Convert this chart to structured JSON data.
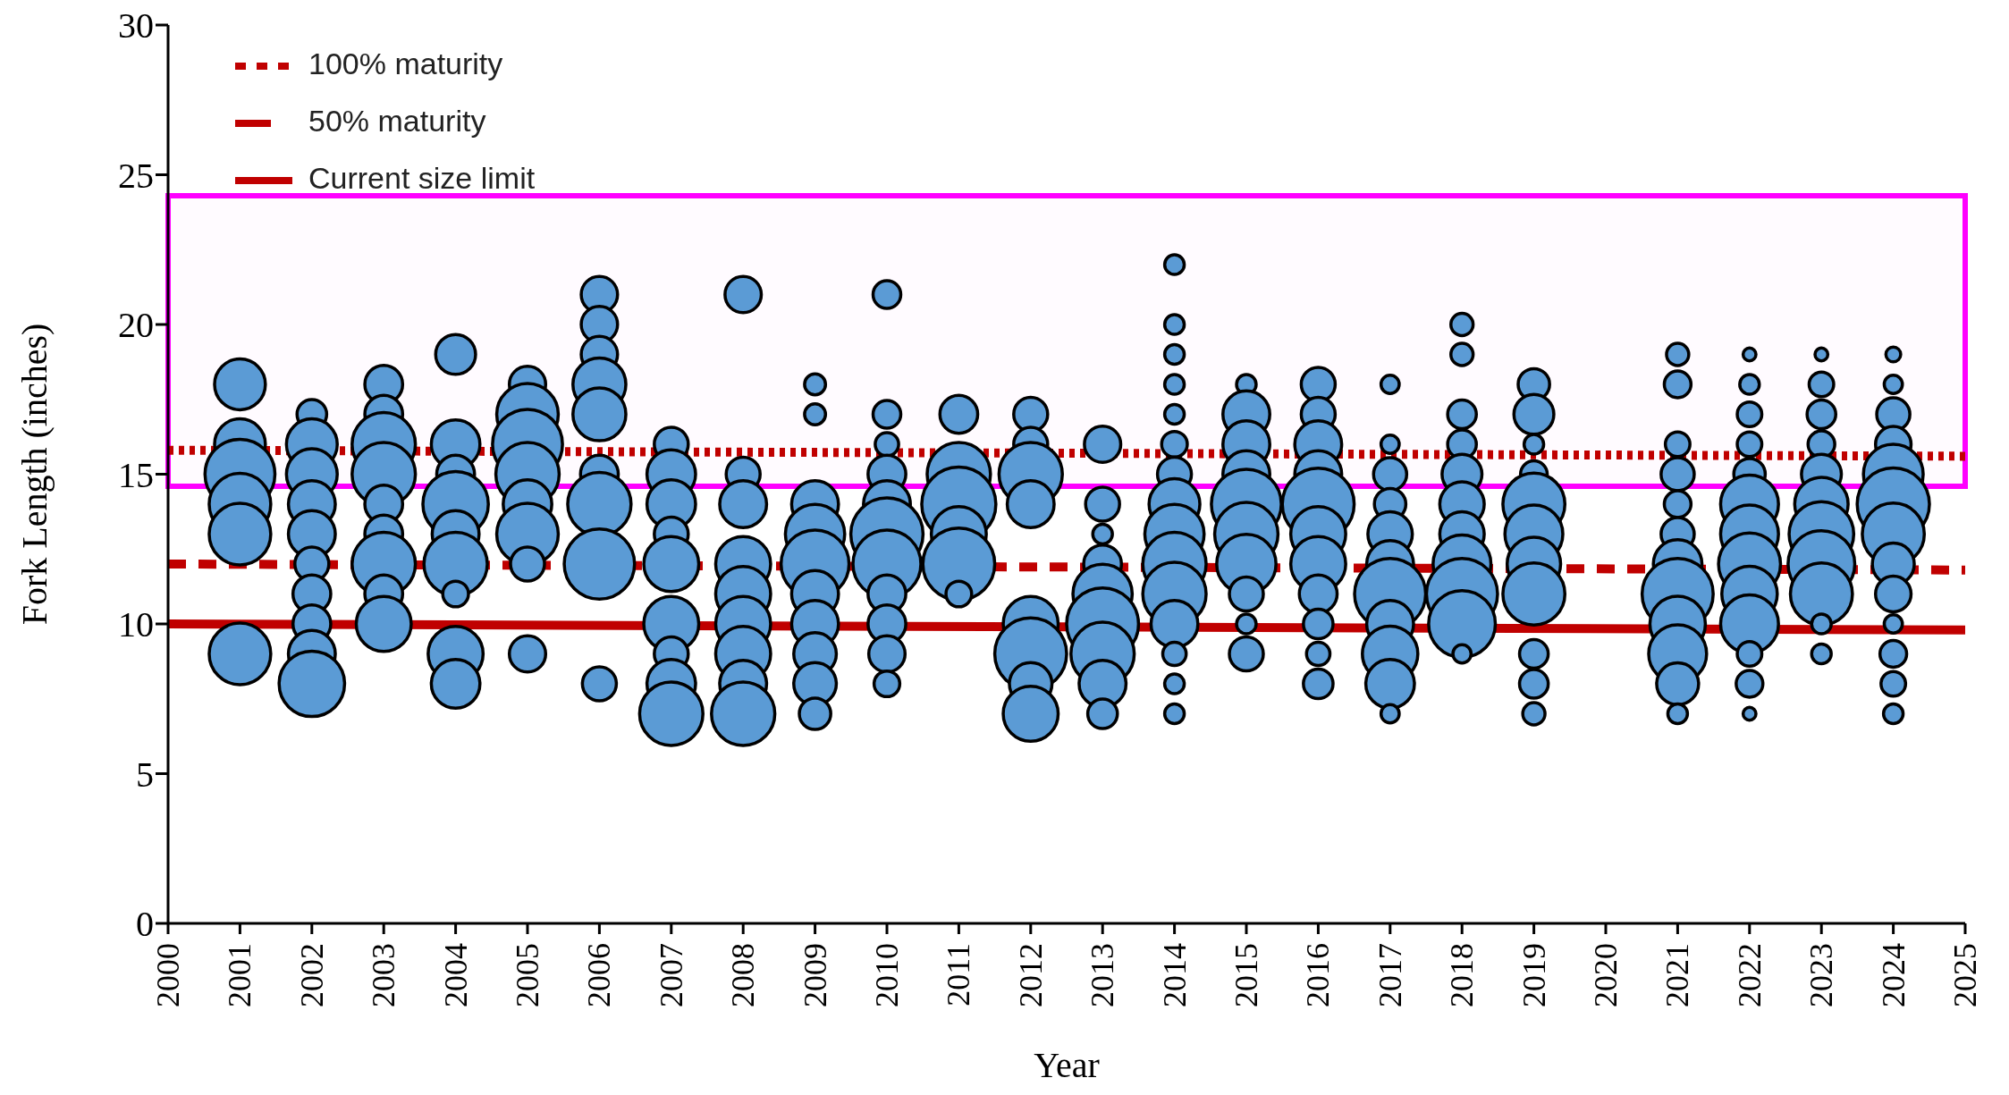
{
  "chart_data": {
    "type": "bubble",
    "xlabel": "Year",
    "ylabel": "Fork Length (inches)",
    "xlim": [
      2000,
      2025
    ],
    "xticks": [
      2000,
      2001,
      2002,
      2003,
      2004,
      2005,
      2006,
      2007,
      2008,
      2009,
      2010,
      2011,
      2012,
      2013,
      2014,
      2015,
      2016,
      2017,
      2018,
      2019,
      2020,
      2021,
      2022,
      2023,
      2024,
      2025
    ],
    "ylim": [
      0,
      30
    ],
    "yticks": [
      0,
      5,
      10,
      15,
      20,
      25,
      30
    ],
    "grid": false,
    "legend": "top left",
    "bands": [
      {
        "axis": "y",
        "from": 14.6,
        "to": 24.3,
        "color": "#ff00ff"
      }
    ],
    "series": [
      {
        "type": "bubble",
        "color": "#5b9bd5",
        "x": [
          2001,
          2001,
          2001,
          2001,
          2001,
          2001,
          2002,
          2002,
          2002,
          2002,
          2002,
          2002,
          2002,
          2002,
          2002,
          2002,
          2003,
          2003,
          2003,
          2003,
          2003,
          2003,
          2003,
          2003,
          2003,
          2004,
          2004,
          2004,
          2004,
          2004,
          2004,
          2004,
          2004,
          2004,
          2005,
          2005,
          2005,
          2005,
          2005,
          2005,
          2005,
          2005,
          2006,
          2006,
          2006,
          2006,
          2006,
          2006,
          2006,
          2006,
          2006,
          2007,
          2007,
          2007,
          2007,
          2007,
          2007,
          2007,
          2007,
          2007,
          2008,
          2008,
          2008,
          2008,
          2008,
          2008,
          2008,
          2008,
          2008,
          2009,
          2009,
          2009,
          2009,
          2009,
          2009,
          2009,
          2009,
          2009,
          2009,
          2010,
          2010,
          2010,
          2010,
          2010,
          2010,
          2010,
          2010,
          2010,
          2010,
          2010,
          2011,
          2011,
          2011,
          2011,
          2011,
          2011,
          2012,
          2012,
          2012,
          2012,
          2012,
          2012,
          2012,
          2012,
          2013,
          2013,
          2013,
          2013,
          2013,
          2013,
          2013,
          2013,
          2013,
          2014,
          2014,
          2014,
          2014,
          2014,
          2014,
          2014,
          2014,
          2014,
          2014,
          2014,
          2014,
          2014,
          2014,
          2014,
          2015,
          2015,
          2015,
          2015,
          2015,
          2015,
          2015,
          2015,
          2015,
          2015,
          2016,
          2016,
          2016,
          2016,
          2016,
          2016,
          2016,
          2016,
          2016,
          2016,
          2016,
          2017,
          2017,
          2017,
          2017,
          2017,
          2017,
          2017,
          2017,
          2017,
          2017,
          2017,
          2018,
          2018,
          2018,
          2018,
          2018,
          2018,
          2018,
          2018,
          2018,
          2018,
          2018,
          2019,
          2019,
          2019,
          2019,
          2019,
          2019,
          2019,
          2019,
          2019,
          2019,
          2019,
          2021,
          2021,
          2021,
          2021,
          2021,
          2021,
          2021,
          2021,
          2021,
          2021,
          2021,
          2021,
          2022,
          2022,
          2022,
          2022,
          2022,
          2022,
          2022,
          2022,
          2022,
          2022,
          2022,
          2022,
          2022,
          2023,
          2023,
          2023,
          2023,
          2023,
          2023,
          2023,
          2023,
          2023,
          2023,
          2023,
          2024,
          2024,
          2024,
          2024,
          2024,
          2024,
          2024,
          2024,
          2024,
          2024,
          2024,
          2024,
          2024
        ],
        "values": [
          18,
          16,
          15,
          14,
          13,
          9,
          17,
          16,
          15,
          14,
          13,
          12,
          11,
          10,
          9,
          8,
          18,
          17,
          16,
          15,
          14,
          13,
          12,
          11,
          10,
          19,
          16,
          15,
          14,
          13,
          12,
          11,
          9,
          8,
          18,
          17,
          16,
          15,
          14,
          13,
          12,
          9,
          21,
          20,
          19,
          18,
          17,
          15,
          14,
          12,
          8,
          16,
          15,
          14,
          13,
          12,
          10,
          9,
          8,
          7,
          21,
          15,
          14,
          12,
          11,
          10,
          9,
          8,
          7,
          18,
          17,
          14,
          13,
          12,
          11,
          10,
          9,
          8,
          7,
          21,
          17,
          16,
          15,
          14,
          13,
          12,
          11,
          10,
          9,
          8,
          17,
          15,
          14,
          13,
          12,
          11,
          17,
          16,
          15,
          14,
          10,
          9,
          8,
          7,
          16,
          14,
          13,
          12,
          11,
          10,
          9,
          8,
          7,
          22,
          20,
          19,
          18,
          17,
          16,
          15,
          14,
          13,
          12,
          11,
          10,
          9,
          8,
          7,
          18,
          17,
          16,
          15,
          14,
          13,
          12,
          11,
          10,
          9,
          18,
          17,
          16,
          15,
          14,
          13,
          12,
          11,
          10,
          9,
          8,
          18,
          16,
          15,
          14,
          13,
          12,
          11,
          10,
          9,
          8,
          7,
          20,
          19,
          17,
          16,
          15,
          14,
          13,
          12,
          11,
          10,
          9,
          18,
          17,
          16,
          15,
          14,
          13,
          12,
          11,
          9,
          8,
          7,
          19,
          18,
          16,
          15,
          14,
          13,
          12,
          11,
          10,
          9,
          8,
          7,
          19,
          18,
          17,
          16,
          15,
          14,
          13,
          12,
          11,
          10,
          9,
          8,
          7,
          19,
          18,
          17,
          16,
          15,
          14,
          13,
          12,
          11,
          10,
          9,
          19,
          18,
          17,
          16,
          15,
          14,
          13,
          12,
          11,
          10,
          9,
          8,
          7
        ],
        "sizes": [
          0.47,
          0.47,
          0.89,
          0.69,
          0.69,
          0.69,
          0.16,
          0.47,
          0.47,
          0.4,
          0.4,
          0.21,
          0.26,
          0.26,
          0.4,
          0.78,
          0.26,
          0.26,
          0.73,
          0.73,
          0.26,
          0.26,
          0.73,
          0.26,
          0.55,
          0.29,
          0.43,
          0.26,
          0.78,
          0.4,
          0.73,
          0.12,
          0.55,
          0.43,
          0.24,
          0.69,
          0.89,
          0.73,
          0.43,
          0.69,
          0.21,
          0.24,
          0.24,
          0.24,
          0.24,
          0.51,
          0.51,
          0.26,
          0.73,
          0.9,
          0.21,
          0.21,
          0.43,
          0.43,
          0.21,
          0.55,
          0.55,
          0.21,
          0.43,
          0.73,
          0.24,
          0.21,
          0.4,
          0.55,
          0.55,
          0.55,
          0.55,
          0.4,
          0.73,
          0.08,
          0.08,
          0.4,
          0.64,
          0.84,
          0.4,
          0.4,
          0.33,
          0.33,
          0.18,
          0.14,
          0.14,
          0.1,
          0.26,
          0.4,
          0.95,
          0.84,
          0.26,
          0.26,
          0.24,
          0.12,
          0.26,
          0.73,
          1,
          0.55,
          0.94,
          0.12,
          0.21,
          0.21,
          0.73,
          0.4,
          0.55,
          0.94,
          0.33,
          0.55,
          0.24,
          0.21,
          0.07,
          0.26,
          0.64,
          0.94,
          0.73,
          0.4,
          0.16,
          0.07,
          0.07,
          0.07,
          0.07,
          0.07,
          0.12,
          0.21,
          0.47,
          0.64,
          0.73,
          0.73,
          0.4,
          0.1,
          0.07,
          0.07,
          0.07,
          0.4,
          0.4,
          0.4,
          0.89,
          0.73,
          0.64,
          0.21,
          0.07,
          0.21,
          0.21,
          0.21,
          0.4,
          0.4,
          0.94,
          0.55,
          0.55,
          0.26,
          0.16,
          0.1,
          0.16,
          0.06,
          0.06,
          0.2,
          0.18,
          0.36,
          0.4,
          0.92,
          0.4,
          0.56,
          0.43,
          0.06,
          0.09,
          0.09,
          0.15,
          0.15,
          0.29,
          0.36,
          0.36,
          0.61,
          0.92,
          0.81,
          0.06,
          0.18,
          0.29,
          0.07,
          0.13,
          0.7,
          0.61,
          0.52,
          0.7,
          0.15,
          0.15,
          0.09,
          0.09,
          0.13,
          0.11,
          0.2,
          0.13,
          0.2,
          0.43,
          0.92,
          0.56,
          0.61,
          0.32,
          0.07,
          0.03,
          0.07,
          0.11,
          0.11,
          0.18,
          0.61,
          0.61,
          0.7,
          0.56,
          0.61,
          0.11,
          0.13,
          0.03,
          0.03,
          0.11,
          0.15,
          0.13,
          0.29,
          0.52,
          0.76,
          0.81,
          0.7,
          0.07,
          0.07,
          0.04,
          0.06,
          0.2,
          0.23,
          0.65,
          0.95,
          0.7,
          0.32,
          0.23,
          0.06,
          0.13,
          0.11,
          0.07
        ]
      },
      {
        "type": "line",
        "name": "100% maturity",
        "color": "#c00000",
        "line_style": "dotted",
        "x": [
          2000,
          2025
        ],
        "values": [
          15.8,
          15.6
        ]
      },
      {
        "type": "line",
        "name": "50% maturity",
        "color": "#c00000",
        "line_style": "dashed",
        "x": [
          2000,
          2025
        ],
        "values": [
          12,
          11.8
        ]
      },
      {
        "type": "line",
        "name": "Current size limit",
        "color": "#c00000",
        "line_style": "solid",
        "x": [
          2000,
          2025
        ],
        "values": [
          10,
          9.8
        ]
      }
    ]
  }
}
